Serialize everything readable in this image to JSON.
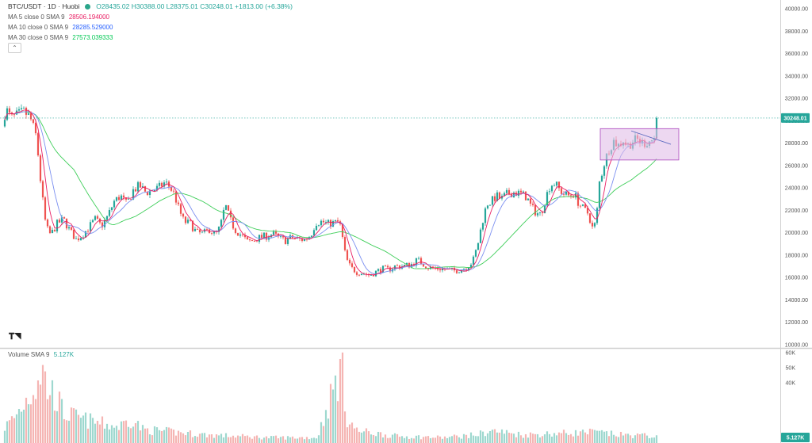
{
  "header": {
    "symbol": "BTC/USDT · 1D · Huobi",
    "ohlc": "O28435.02 H30388.00 L28375.01 C30248.01 +1813.00 (+6.38%)"
  },
  "legends": [
    {
      "label": "MA 5 close 0 SMA 9",
      "value": "28506.194000",
      "color": "#e91e63"
    },
    {
      "label": "MA 10 close 0 SMA 9",
      "value": "28285.529000",
      "color": "#2962ff"
    },
    {
      "label": "MA 30 close 0 SMA 9",
      "value": "27573.039333",
      "color": "#00c853"
    }
  ],
  "volume_legend": {
    "label": "Volume SMA 9",
    "value": "5.127K"
  },
  "icons": {
    "collapse": "chevron-up-icon",
    "logo": "tradingview-logo-icon"
  },
  "colors": {
    "up": "#26a69a",
    "down": "#ef5350",
    "ma5": "#e91e63",
    "ma10": "#7b8ff0",
    "ma30": "#3fce5a",
    "box": "#e1bee7",
    "box_border": "#ab47bc"
  },
  "current_price_label": "30248.01",
  "current_volume_label": "5.127K",
  "chart_data": {
    "type": "candlestick",
    "title": "BTC/USDT · 1D · Huobi",
    "y_axis_ticks": [
      "40000.00",
      "38000.00",
      "36000.00",
      "34000.00",
      "32000.00",
      "30000.00",
      "28000.00",
      "26000.00",
      "24000.00",
      "22000.00",
      "20000.00",
      "18000.00",
      "16000.00",
      "14000.00",
      "12000.00",
      "10000.00"
    ],
    "y_axis_values": [
      40000,
      38000,
      36000,
      34000,
      32000,
      30000,
      28000,
      26000,
      24000,
      22000,
      20000,
      18000,
      16000,
      14000,
      12000,
      10000
    ],
    "ylim": [
      10000,
      41000
    ],
    "volume_ticks": [
      "60K",
      "50K",
      "40K"
    ],
    "volume_values": [
      60000,
      50000,
      40000
    ],
    "volume_lim": [
      0,
      62000
    ],
    "last": {
      "open": 28435.02,
      "high": 30388.0,
      "low": 28375.01,
      "close": 30248.01
    },
    "price_path": [
      [
        0,
        29500
      ],
      [
        8,
        31000
      ],
      [
        14,
        30200
      ],
      [
        22,
        30500
      ],
      [
        30,
        30800
      ],
      [
        38,
        30300
      ],
      [
        46,
        28500
      ],
      [
        52,
        24000
      ],
      [
        58,
        20500
      ],
      [
        64,
        19800
      ],
      [
        72,
        20800
      ],
      [
        80,
        21200
      ],
      [
        88,
        20200
      ],
      [
        96,
        19400
      ],
      [
        104,
        19800
      ],
      [
        112,
        20500
      ],
      [
        120,
        21200
      ],
      [
        128,
        20600
      ],
      [
        136,
        21500
      ],
      [
        144,
        22800
      ],
      [
        152,
        23300
      ],
      [
        160,
        22500
      ],
      [
        168,
        23800
      ],
      [
        176,
        24200
      ],
      [
        184,
        23600
      ],
      [
        192,
        23800
      ],
      [
        200,
        24000
      ],
      [
        208,
        24500
      ],
      [
        214,
        24100
      ],
      [
        220,
        23400
      ],
      [
        226,
        22000
      ],
      [
        232,
        21000
      ],
      [
        240,
        20800
      ],
      [
        248,
        20000
      ],
      [
        256,
        19900
      ],
      [
        264,
        20300
      ],
      [
        272,
        19800
      ],
      [
        278,
        20600
      ],
      [
        284,
        22500
      ],
      [
        290,
        21200
      ],
      [
        296,
        20300
      ],
      [
        304,
        19800
      ],
      [
        312,
        19200
      ],
      [
        320,
        19300
      ],
      [
        328,
        19600
      ],
      [
        336,
        19700
      ],
      [
        344,
        19900
      ],
      [
        352,
        19500
      ],
      [
        360,
        19300
      ],
      [
        368,
        19600
      ],
      [
        376,
        19400
      ],
      [
        384,
        19400
      ],
      [
        392,
        19800
      ],
      [
        398,
        20900
      ],
      [
        406,
        21000
      ],
      [
        414,
        20800
      ],
      [
        422,
        20900
      ],
      [
        428,
        21000
      ],
      [
        432,
        19500
      ],
      [
        436,
        17800
      ],
      [
        442,
        16900
      ],
      [
        450,
        16500
      ],
      [
        458,
        16400
      ],
      [
        466,
        16200
      ],
      [
        474,
        16500
      ],
      [
        482,
        16800
      ],
      [
        490,
        16700
      ],
      [
        498,
        17000
      ],
      [
        506,
        17000
      ],
      [
        514,
        17100
      ],
      [
        520,
        17200
      ],
      [
        526,
        17600
      ],
      [
        532,
        17300
      ],
      [
        540,
        16900
      ],
      [
        548,
        16800
      ],
      [
        556,
        16800
      ],
      [
        564,
        16700
      ],
      [
        572,
        16600
      ],
      [
        580,
        16700
      ],
      [
        588,
        16900
      ],
      [
        596,
        17400
      ],
      [
        602,
        18800
      ],
      [
        608,
        20900
      ],
      [
        614,
        22600
      ],
      [
        620,
        22800
      ],
      [
        626,
        23300
      ],
      [
        632,
        23000
      ],
      [
        640,
        23500
      ],
      [
        648,
        23600
      ],
      [
        656,
        23500
      ],
      [
        664,
        23200
      ],
      [
        670,
        22300
      ],
      [
        676,
        21800
      ],
      [
        682,
        21600
      ],
      [
        688,
        23100
      ],
      [
        694,
        24300
      ],
      [
        700,
        24400
      ],
      [
        706,
        23800
      ],
      [
        712,
        23400
      ],
      [
        718,
        23300
      ],
      [
        724,
        23500
      ],
      [
        730,
        22600
      ],
      [
        736,
        22100
      ],
      [
        742,
        21700
      ],
      [
        748,
        20200
      ],
      [
        752,
        21200
      ],
      [
        756,
        24500
      ],
      [
        762,
        26200
      ],
      [
        768,
        27500
      ],
      [
        774,
        28200
      ],
      [
        780,
        27800
      ],
      [
        786,
        28300
      ],
      [
        792,
        27800
      ],
      [
        798,
        28200
      ],
      [
        804,
        28300
      ],
      [
        810,
        28000
      ],
      [
        816,
        28100
      ],
      [
        822,
        28300
      ],
      [
        828,
        28435
      ],
      [
        830,
        30248
      ]
    ],
    "volume_path": [
      [
        0,
        8000
      ],
      [
        20,
        20000
      ],
      [
        44,
        42000
      ],
      [
        52,
        56000
      ],
      [
        60,
        40000
      ],
      [
        70,
        35000
      ],
      [
        80,
        22000
      ],
      [
        100,
        18000
      ],
      [
        130,
        14000
      ],
      [
        150,
        12000
      ],
      [
        166,
        18000
      ],
      [
        180,
        10000
      ],
      [
        220,
        8000
      ],
      [
        260,
        6000
      ],
      [
        300,
        5000
      ],
      [
        340,
        4000
      ],
      [
        400,
        4000
      ],
      [
        432,
        59000
      ],
      [
        436,
        20000
      ],
      [
        450,
        9000
      ],
      [
        500,
        5000
      ],
      [
        560,
        4000
      ],
      [
        600,
        6000
      ],
      [
        620,
        9000
      ],
      [
        660,
        6000
      ],
      [
        700,
        7000
      ],
      [
        750,
        8000
      ],
      [
        780,
        6000
      ],
      [
        830,
        5127
      ]
    ],
    "annotations": [
      {
        "type": "box",
        "from_x": 757,
        "to_x": 856,
        "from": 26500,
        "to": 29300
      },
      {
        "type": "trendline",
        "from": [
          796,
          29100
        ],
        "to": [
          846,
          27900
        ]
      }
    ]
  }
}
